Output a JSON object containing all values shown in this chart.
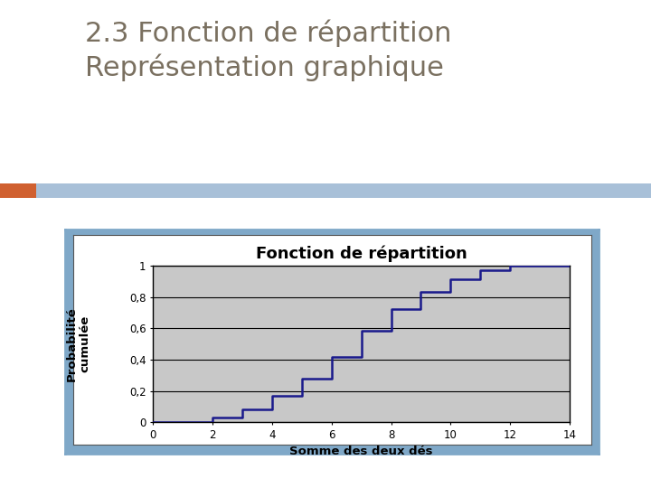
{
  "title": "Fonction de répartition",
  "xlabel": "Somme des deux dés",
  "ylabel_line1": "Probabilité",
  "ylabel_line2": "cumulée",
  "page_title": "2.3 Fonction de répartition\nReprésentation graphique",
  "cdf_x": [
    2,
    3,
    4,
    5,
    6,
    7,
    8,
    9,
    10,
    11,
    12
  ],
  "cdf_y": [
    0.0278,
    0.0833,
    0.1667,
    0.2778,
    0.4167,
    0.5833,
    0.7222,
    0.8333,
    0.9167,
    0.9722,
    1.0
  ],
  "xlim": [
    0,
    14
  ],
  "ylim": [
    0,
    1.0
  ],
  "xticks": [
    0,
    2,
    4,
    6,
    8,
    10,
    12,
    14
  ],
  "yticks": [
    0,
    0.2,
    0.4,
    0.6,
    0.8,
    1.0
  ],
  "ytick_labels": [
    "0",
    "0,2",
    "0,4",
    "0,6",
    "0,8",
    "1"
  ],
  "line_color": "#1a1a8c",
  "plot_bg_color": "#c8c8c8",
  "outer_border_color": "#7fa8c8",
  "inner_bg_color": "#ffffff",
  "page_bg_color": "#ffffff",
  "title_fontsize": 13,
  "axis_label_fontsize": 9.5,
  "tick_fontsize": 8.5,
  "line_width": 1.8,
  "page_title_fontsize": 22,
  "page_title_color": "#7a7060",
  "header_bar_color": "#a8c0d8",
  "orange_rect_color": "#d06030"
}
